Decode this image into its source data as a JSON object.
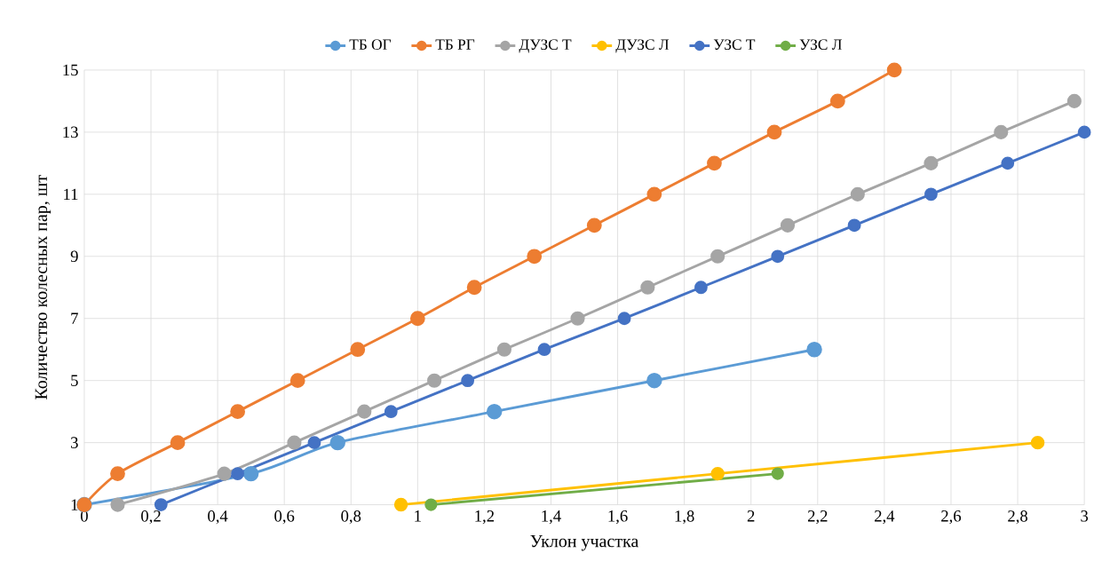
{
  "chart_data": {
    "type": "line",
    "xlabel": "Уклон участка",
    "ylabel": "Количество колесных пар, шт",
    "xlim": [
      0,
      3
    ],
    "ylim": [
      1,
      15
    ],
    "xticks": [
      0,
      {
        "value": 0.2,
        "label": "0,2"
      },
      {
        "value": 0.4,
        "label": "0,4"
      },
      {
        "value": 0.6,
        "label": "0,6"
      },
      {
        "value": 0.8,
        "label": "0,8"
      },
      1,
      {
        "value": 1.2,
        "label": "1,2"
      },
      {
        "value": 1.4,
        "label": "1,4"
      },
      {
        "value": 1.6,
        "label": "1,6"
      },
      {
        "value": 1.8,
        "label": "1,8"
      },
      2,
      {
        "value": 2.2,
        "label": "2,2"
      },
      {
        "value": 2.4,
        "label": "2,4"
      },
      {
        "value": 2.6,
        "label": "2,6"
      },
      {
        "value": 2.8,
        "label": "2,8"
      },
      3
    ],
    "yticks": [
      1,
      3,
      5,
      7,
      9,
      11,
      13,
      15
    ],
    "grid": true,
    "legend": "top",
    "marker": "circle",
    "line_style": "solid",
    "series": [
      {
        "name": "ТБ ОГ",
        "color": "#5b9bd5",
        "x": [
          0,
          0.5,
          0.76,
          1.23,
          1.71,
          2.19
        ],
        "values": [
          1,
          2,
          3,
          4,
          5,
          6
        ]
      },
      {
        "name": "ТБ РГ",
        "color": "#ed7d31",
        "x": [
          0,
          0.1,
          0.28,
          0.46,
          0.64,
          0.82,
          1.0,
          1.17,
          1.35,
          1.53,
          1.71,
          1.89,
          2.07,
          2.26,
          2.43
        ],
        "values": [
          1,
          2,
          3,
          4,
          5,
          6,
          7,
          8,
          9,
          10,
          11,
          12,
          13,
          14,
          15
        ]
      },
      {
        "name": "ДУЗС Т",
        "color": "#a5a5a5",
        "x": [
          0.1,
          0.42,
          0.63,
          0.84,
          1.05,
          1.26,
          1.48,
          1.69,
          1.9,
          2.11,
          2.32,
          2.54,
          2.75,
          2.97
        ],
        "values": [
          1,
          2,
          3,
          4,
          5,
          6,
          7,
          8,
          9,
          10,
          11,
          12,
          13,
          14
        ]
      },
      {
        "name": "ДУЗС Л",
        "color": "#ffc000",
        "x": [
          0.95,
          1.9,
          2.86
        ],
        "values": [
          1,
          2,
          3
        ]
      },
      {
        "name": "УЗС Т",
        "color": "#4472c4",
        "x": [
          0.23,
          0.46,
          0.69,
          0.92,
          1.15,
          1.38,
          1.62,
          1.85,
          2.08,
          2.31,
          2.54,
          2.77,
          3.0
        ],
        "values": [
          1,
          2,
          3,
          4,
          5,
          6,
          7,
          8,
          9,
          10,
          11,
          12,
          13
        ]
      },
      {
        "name": "УЗС Л",
        "color": "#70ad47",
        "x": [
          1.04,
          2.08
        ],
        "values": [
          1,
          2
        ]
      }
    ]
  }
}
